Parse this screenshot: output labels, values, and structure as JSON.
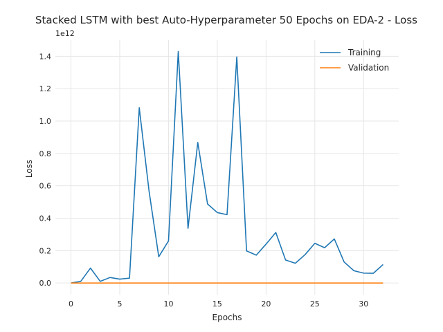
{
  "chart_data": {
    "type": "line",
    "title": "Stacked LSTM with best Auto-Hyperparameter 50 Epochs on EDA-2 - Loss",
    "xlabel": "Epochs",
    "ylabel": "Loss",
    "y_offset_text": "1e12",
    "xlim": [
      -1.6,
      33.6
    ],
    "ylim": [
      -0.072,
      1.5
    ],
    "x_ticks": [
      0,
      5,
      10,
      15,
      20,
      25,
      30
    ],
    "y_ticks": [
      0.0,
      0.2,
      0.4,
      0.6,
      0.8,
      1.0,
      1.2,
      1.4
    ],
    "x_tick_labels": [
      "0",
      "5",
      "10",
      "15",
      "20",
      "25",
      "30"
    ],
    "y_tick_labels": [
      "0.0",
      "0.2",
      "0.4",
      "0.6",
      "0.8",
      "1.0",
      "1.2",
      "1.4"
    ],
    "grid": true,
    "legend_position": "top-right",
    "x": [
      0,
      1,
      2,
      3,
      4,
      5,
      6,
      7,
      8,
      9,
      10,
      11,
      12,
      13,
      14,
      15,
      16,
      17,
      18,
      19,
      20,
      21,
      22,
      23,
      24,
      25,
      26,
      27,
      28,
      29,
      30,
      31,
      32
    ],
    "series": [
      {
        "name": "Training",
        "color": "#1f77b4",
        "values": [
          0.0,
          0.01,
          0.092,
          0.01,
          0.034,
          0.024,
          0.03,
          1.082,
          0.57,
          0.162,
          0.26,
          1.43,
          0.338,
          0.868,
          0.488,
          0.435,
          0.422,
          1.396,
          0.198,
          0.172,
          0.24,
          0.312,
          0.142,
          0.122,
          0.175,
          0.245,
          0.218,
          0.272,
          0.13,
          0.076,
          0.061,
          0.06,
          0.114
        ]
      },
      {
        "name": "Validation",
        "color": "#ff7f0e",
        "values": [
          0.0,
          0.0,
          0.0,
          0.0,
          0.0,
          0.0,
          0.0,
          0.0,
          0.0,
          0.0,
          0.0,
          0.0,
          0.0,
          0.0,
          0.0,
          0.0,
          0.0,
          0.0,
          0.0,
          0.0,
          0.0,
          0.0,
          0.0,
          0.0,
          0.0,
          0.0,
          0.0,
          0.0,
          0.0,
          0.0,
          0.0,
          0.0,
          0.0
        ]
      }
    ]
  }
}
